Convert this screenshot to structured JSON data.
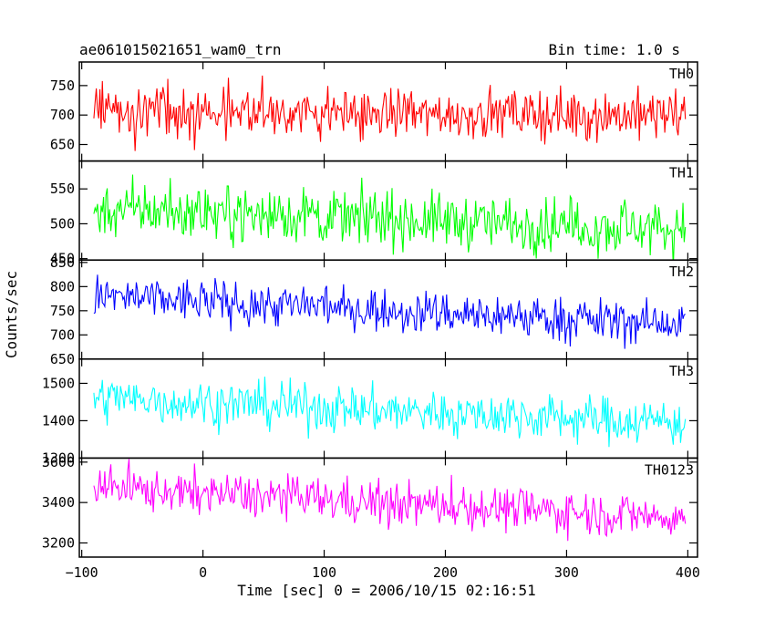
{
  "header": {
    "title": "ae061015021651_wam0_trn",
    "bin_time": "Bin time: 1.0 s"
  },
  "chart_data": {
    "type": "line",
    "title": "ae061015021651_wam0_trn",
    "xlabel": "Time [sec] 0 = 2006/10/15 02:16:51",
    "ylabel": "Counts/sec",
    "xlim": [
      -102,
      408
    ],
    "x_ticks": [
      -100,
      0,
      100,
      200,
      300,
      400
    ],
    "x_tick_labels": [
      "−100",
      "0",
      "100",
      "200",
      "300",
      "400"
    ],
    "x_range": [
      -90,
      398
    ],
    "bin_time_s": 1.0,
    "panels": [
      {
        "name": "TH0",
        "color": "#ff0000",
        "ylim": [
          622,
          790
        ],
        "y_ticks": [
          650,
          700,
          750
        ],
        "y_tick_labels": [
          "650",
          "700",
          "750"
        ],
        "start": 705,
        "end": 700,
        "noise": 22,
        "spike": 25
      },
      {
        "name": "TH1",
        "color": "#00ff00",
        "ylim": [
          448,
          590
        ],
        "y_ticks": [
          450,
          500,
          550
        ],
        "y_tick_labels": [
          "450",
          "500",
          "550"
        ],
        "start": 522,
        "end": 492,
        "noise": 20,
        "spike": 25
      },
      {
        "name": "TH2",
        "color": "#0000ff",
        "ylim": [
          650,
          855
        ],
        "y_ticks": [
          650,
          700,
          750,
          800,
          850
        ],
        "y_tick_labels": [
          "650",
          "700",
          "750",
          "800",
          "850"
        ],
        "start": 780,
        "end": 722,
        "noise": 23,
        "spike": 30
      },
      {
        "name": "TH3",
        "color": "#00ffff",
        "ylim": [
          1300,
          1565
        ],
        "y_ticks": [
          1300,
          1400,
          1500
        ],
        "y_tick_labels": [
          "1300",
          "1400",
          "1500"
        ],
        "start": 1460,
        "end": 1395,
        "noise": 32,
        "spike": 40
      },
      {
        "name": "TH0123",
        "color": "#ff00ff",
        "ylim": [
          3130,
          3620
        ],
        "y_ticks": [
          3200,
          3400,
          3600
        ],
        "y_tick_labels": [
          "3200",
          "3400",
          "3600"
        ],
        "start": 3475,
        "end": 3325,
        "noise": 55,
        "spike": 70
      }
    ]
  }
}
